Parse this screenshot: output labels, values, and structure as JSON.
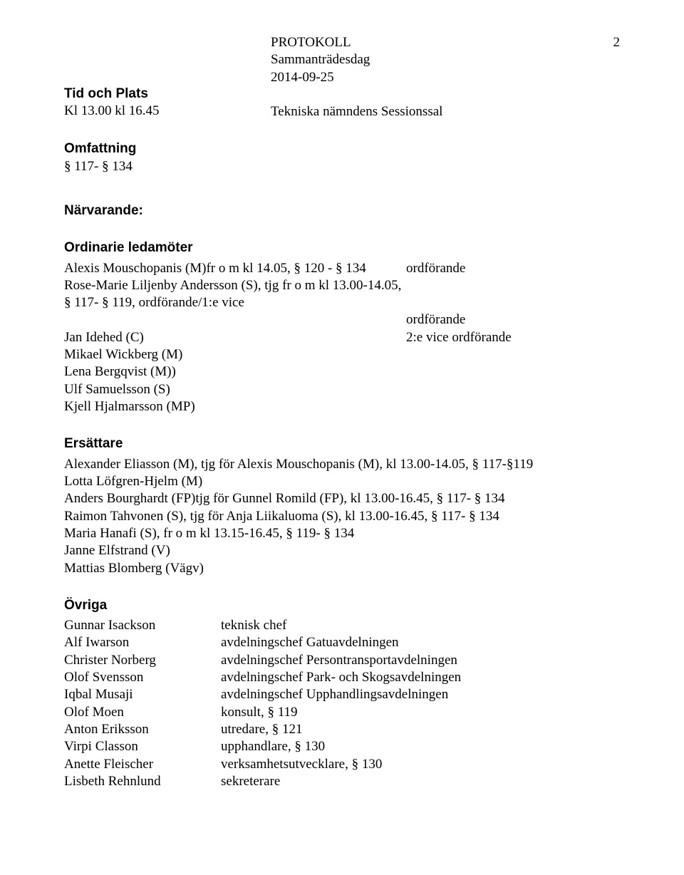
{
  "page_number": "2",
  "header": {
    "protokoll": "PROTOKOLL",
    "sammantrade": "Sammanträdesdag",
    "date": "2014-09-25",
    "tid_plats_label": "Tid och Plats",
    "tid": "Kl 13.00 kl 16.45",
    "sessionssal": "Tekniska nämndens Sessionssal"
  },
  "omfattning": {
    "label": "Omfattning",
    "range": "§ 117- § 134"
  },
  "narvarande_label": "Närvarande:",
  "ordinarie": {
    "label": "Ordinarie ledamöter",
    "rows": [
      {
        "name": "Alexis Mouschopanis (M)fr o m kl 14.05, § 120 - § 134",
        "role": "ordförande"
      },
      {
        "name": "Rose-Marie Liljenby Andersson (S), tjg fr o m kl 13.00-14.05, § 117- § 119, ordförande/1:e vice",
        "role": ""
      },
      {
        "name": "",
        "role": "ordförande"
      },
      {
        "name": "Jan Idehed (C)",
        "role": "2:e vice ordförande"
      },
      {
        "name": "Mikael Wickberg (M)",
        "role": ""
      },
      {
        "name": "Lena Bergqvist (M))",
        "role": ""
      },
      {
        "name": "Ulf Samuelsson (S)",
        "role": ""
      },
      {
        "name": "Kjell Hjalmarsson (MP)",
        "role": ""
      }
    ]
  },
  "ersattare": {
    "label": "Ersättare",
    "lines": [
      "Alexander Eliasson (M), tjg för Alexis Mouschopanis (M), kl 13.00-14.05, § 117-§119",
      "Lotta Löfgren-Hjelm (M)",
      "Anders Bourghardt (FP)tjg  för Gunnel Romild (FP), kl 13.00-16.45, § 117- § 134",
      "Raimon Tahvonen (S), tjg för Anja Liikaluoma (S), kl 13.00-16.45, § 117- § 134",
      "Maria Hanafi (S), fr o m kl 13.15-16.45, § 119- § 134",
      "Janne Elfstrand (V)",
      "Mattias Blomberg (Vägv)"
    ]
  },
  "ovriga": {
    "label": "Övriga",
    "rows": [
      {
        "name": "Gunnar Isackson",
        "role": "teknisk chef"
      },
      {
        "name": "Alf Iwarson",
        "role": "avdelningschef Gatuavdelningen"
      },
      {
        "name": "Christer Norberg",
        "role": "avdelningschef Persontransportavdelningen"
      },
      {
        "name": "Olof Svensson",
        "role": "avdelningschef Park- och Skogsavdelningen"
      },
      {
        "name": "Iqbal Musaji",
        "role": "avdelningschef Upphandlingsavdelningen"
      },
      {
        "name": "Olof Moen",
        "role": "konsult, § 119"
      },
      {
        "name": "Anton Eriksson",
        "role": "utredare, § 121"
      },
      {
        "name": "Virpi Classon",
        "role": "upphandlare, § 130"
      },
      {
        "name": "Anette Fleischer",
        "role": "verksamhetsutvecklare, § 130"
      },
      {
        "name": "Lisbeth Rehnlund",
        "role": "sekreterare"
      }
    ]
  }
}
